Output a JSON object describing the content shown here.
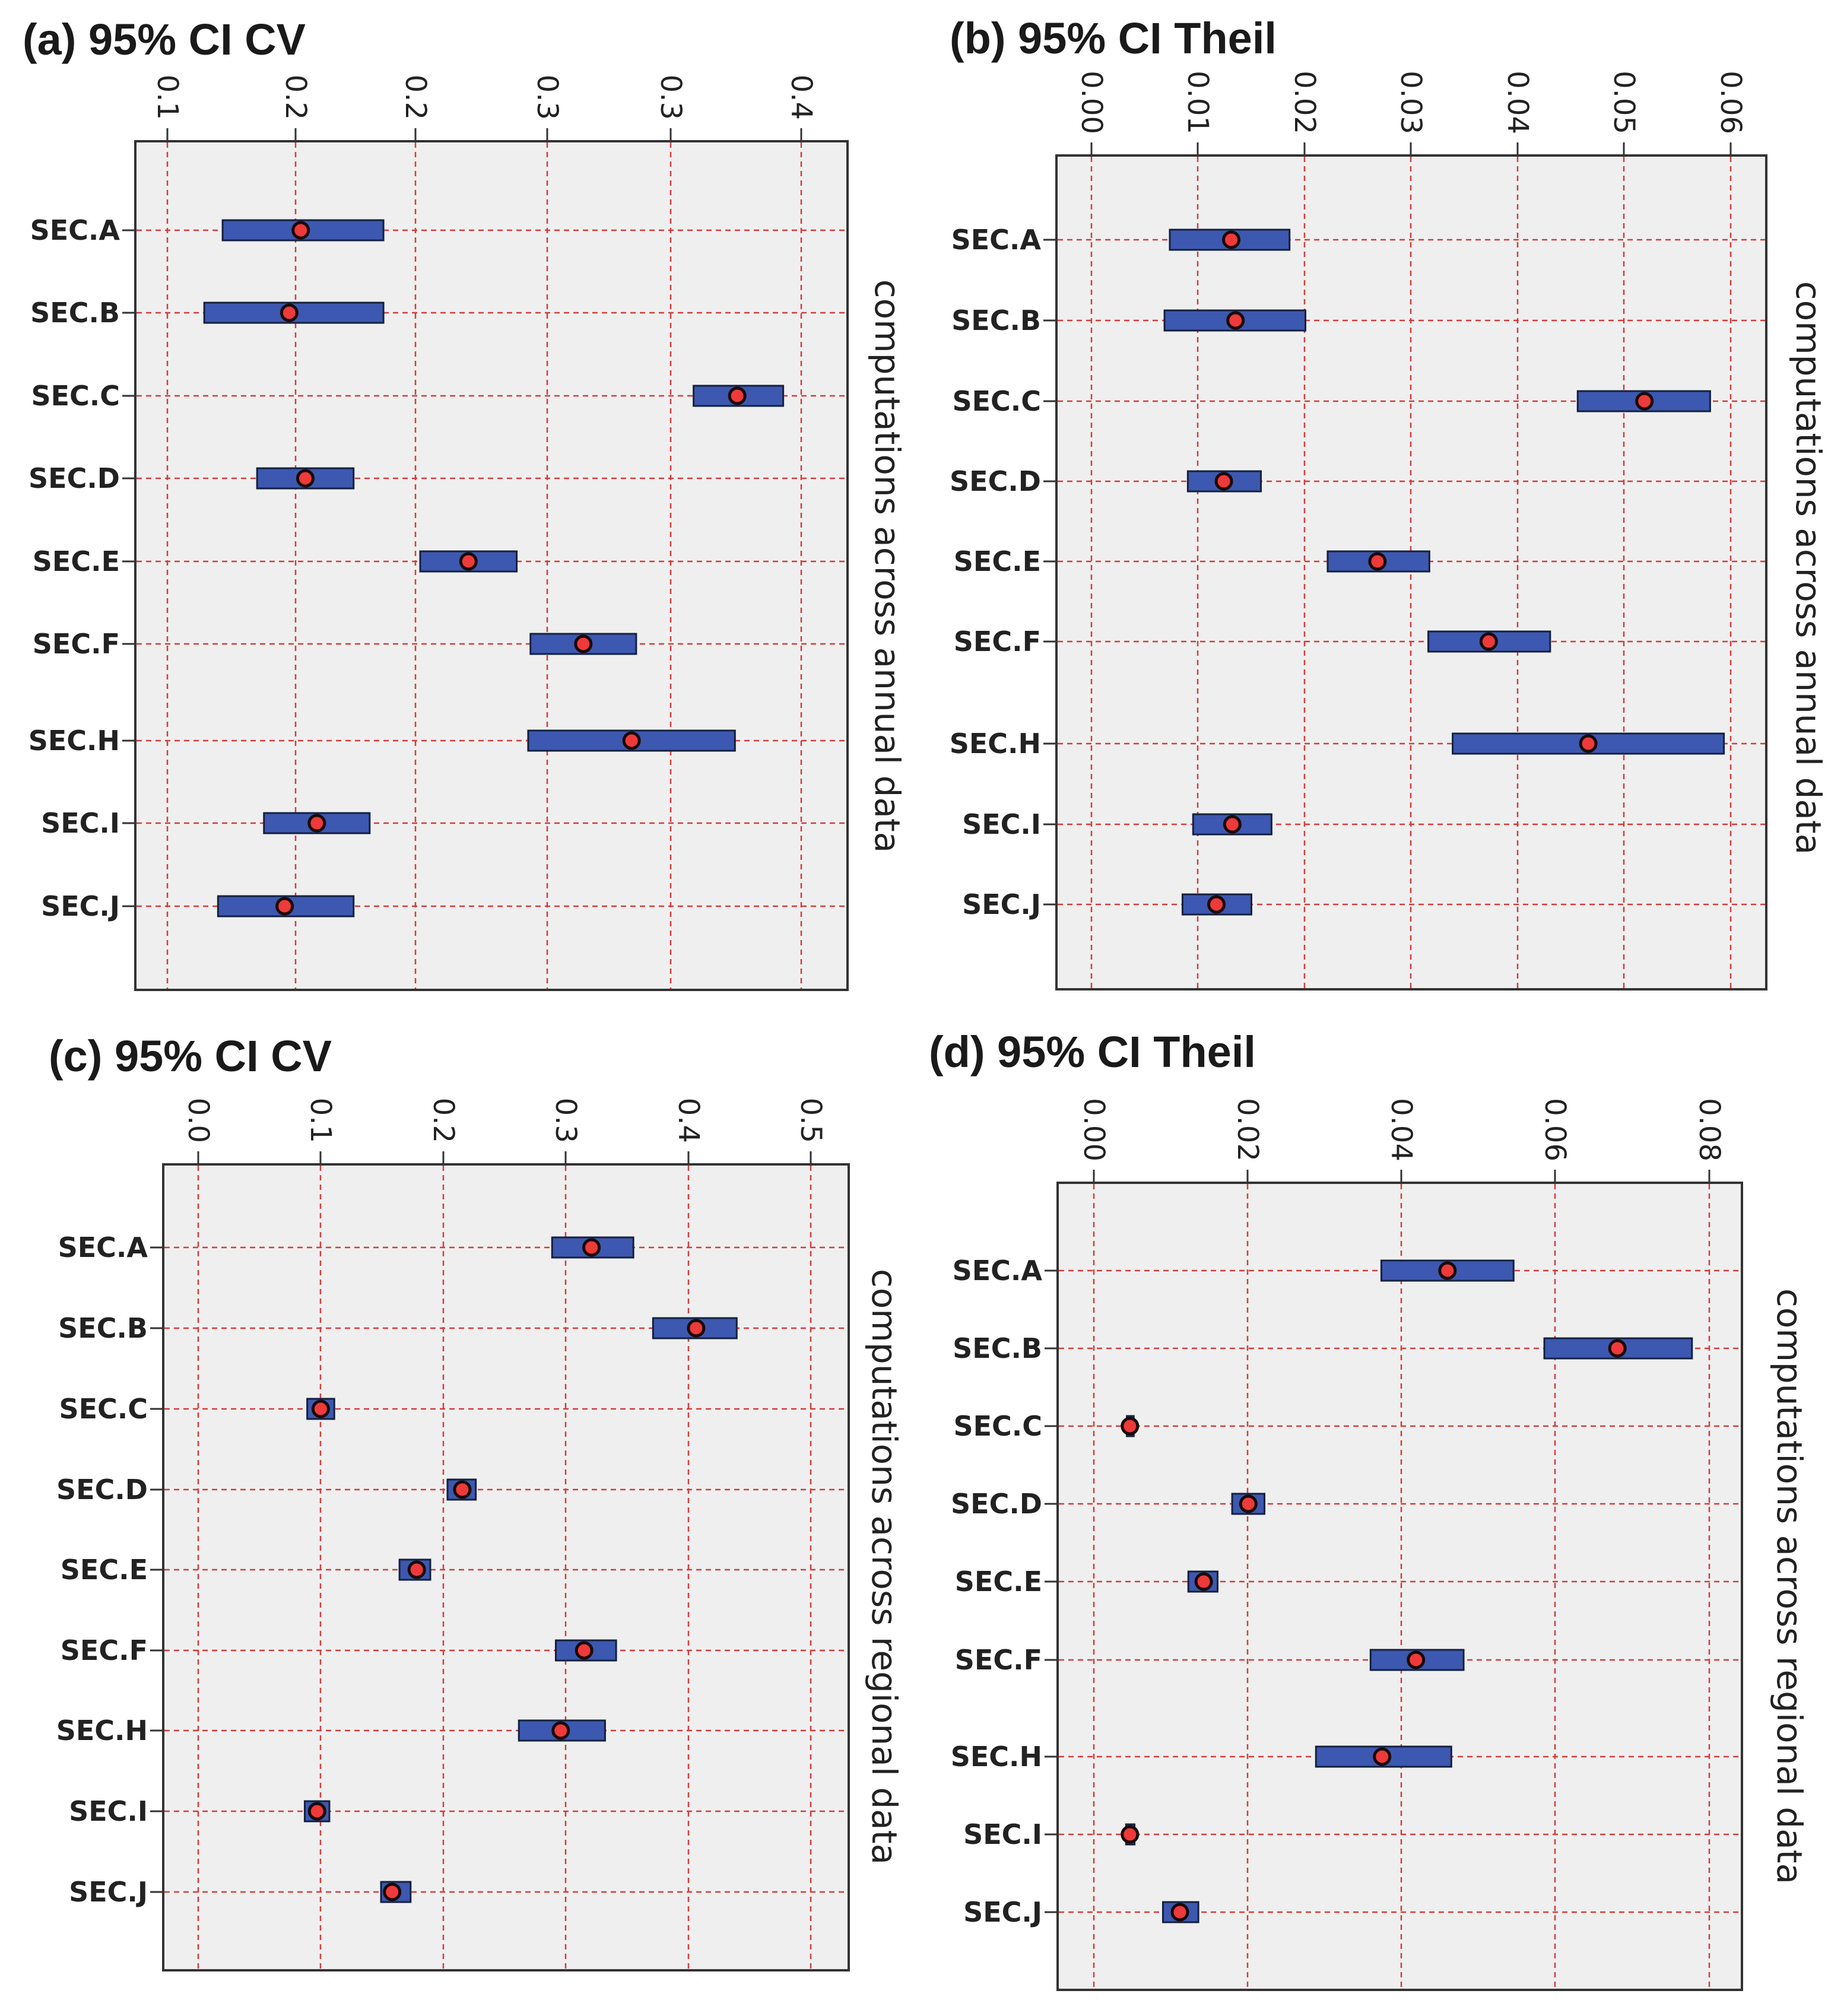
{
  "chart_data": [
    {
      "type": "interval",
      "title": "(a) 95% CI CV",
      "ylabel": "computations across annual data",
      "ticks": [
        "0.1",
        "0.2",
        "0.2",
        "0.3",
        "0.3",
        "0.4"
      ],
      "xlim": [
        0.09,
        0.4
      ],
      "categories": [
        "SEC.A",
        "SEC.B",
        "SEC.C",
        "SEC.D",
        "SEC.E",
        "SEC.F",
        "SEC.H",
        "SEC.I",
        "SEC.J"
      ],
      "low": [
        0.128,
        0.12,
        0.333,
        0.143,
        0.214,
        0.262,
        0.261,
        0.146,
        0.126
      ],
      "high": [
        0.198,
        0.198,
        0.372,
        0.185,
        0.256,
        0.308,
        0.351,
        0.192,
        0.185
      ],
      "mean": [
        0.162,
        0.157,
        0.352,
        0.164,
        0.235,
        0.285,
        0.306,
        0.169,
        0.155
      ]
    },
    {
      "type": "interval",
      "title": "(b) 95% CI Theil",
      "ylabel": "computations across annual data",
      "ticks": [
        "0.00",
        "0.01",
        "0.02",
        "0.03",
        "0.04",
        "0.05",
        "0.06"
      ],
      "xlim": [
        -0.0035,
        0.0635
      ],
      "categories": [
        "SEC.A",
        "SEC.B",
        "SEC.C",
        "SEC.D",
        "SEC.E",
        "SEC.F",
        "SEC.H",
        "SEC.I",
        "SEC.J"
      ],
      "low": [
        0.0072,
        0.0067,
        0.0457,
        0.0089,
        0.0221,
        0.0316,
        0.0339,
        0.0094,
        0.0084
      ],
      "high": [
        0.0185,
        0.02,
        0.0582,
        0.0158,
        0.0317,
        0.0431,
        0.0595,
        0.0168,
        0.0149
      ],
      "mean": [
        0.013,
        0.0134,
        0.052,
        0.0123,
        0.0268,
        0.0373,
        0.0467,
        0.0131,
        0.0116
      ]
    },
    {
      "type": "interval",
      "title": "(c) 95% CI CV",
      "ylabel": "computations across regional data",
      "ticks": [
        "0.0",
        "0.1",
        "0.2",
        "0.3",
        "0.4",
        "0.5"
      ],
      "xlim": [
        -0.027,
        0.53
      ],
      "categories": [
        "SEC.A",
        "SEC.B",
        "SEC.C",
        "SEC.D",
        "SEC.E",
        "SEC.F",
        "SEC.H",
        "SEC.I",
        "SEC.J"
      ],
      "low": [
        0.289,
        0.371,
        0.09,
        0.204,
        0.165,
        0.292,
        0.262,
        0.088,
        0.15
      ],
      "high": [
        0.355,
        0.439,
        0.112,
        0.227,
        0.19,
        0.341,
        0.332,
        0.108,
        0.174
      ],
      "mean": [
        0.321,
        0.406,
        0.101,
        0.216,
        0.179,
        0.315,
        0.296,
        0.098,
        0.159
      ]
    },
    {
      "type": "interval",
      "title": "(d) 95% CI Theil",
      "ylabel": "computations across regional data",
      "ticks": [
        "0.00",
        "0.02",
        "0.04",
        "0.06",
        "0.08"
      ],
      "xlim": [
        -0.0045,
        0.0845
      ],
      "categories": [
        "SEC.A",
        "SEC.B",
        "SEC.C",
        "SEC.D",
        "SEC.E",
        "SEC.F",
        "SEC.H",
        "SEC.I",
        "SEC.J"
      ],
      "low": [
        0.0376,
        0.0588,
        0.0045,
        0.0182,
        0.0125,
        0.0362,
        0.0291,
        0.0044,
        0.0092
      ],
      "high": [
        0.0548,
        0.078,
        0.0054,
        0.0224,
        0.0163,
        0.0483,
        0.0467,
        0.0055,
        0.0138
      ],
      "mean": [
        0.0462,
        0.0683,
        0.0049,
        0.0203,
        0.0145,
        0.0421,
        0.0377,
        0.0049,
        0.0114
      ]
    }
  ]
}
